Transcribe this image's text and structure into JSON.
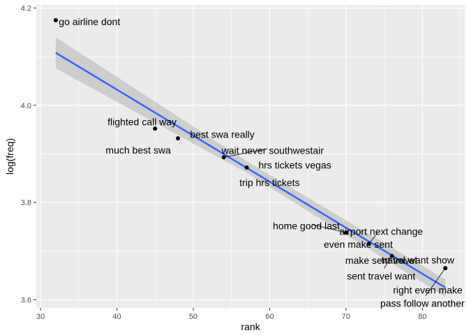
{
  "chart_data": {
    "type": "scatter",
    "title": "",
    "xlabel": "rank",
    "ylabel": "log(freq)",
    "xlim": [
      29.45,
      85.55
    ],
    "ylim": [
      3.5835,
      4.2065
    ],
    "x_ticks": [
      {
        "value": 30,
        "label": "30"
      },
      {
        "value": 40,
        "label": "40"
      },
      {
        "value": 50,
        "label": "50"
      },
      {
        "value": 60,
        "label": "60"
      },
      {
        "value": 70,
        "label": "70"
      },
      {
        "value": 80,
        "label": "80"
      }
    ],
    "y_ticks": [
      {
        "value": 3.6,
        "label": "3.6"
      },
      {
        "value": 3.8,
        "label": "3.8"
      },
      {
        "value": 4.0,
        "label": "4.0"
      },
      {
        "value": 4.2,
        "label": "4.2"
      }
    ],
    "grid": true,
    "legend": "none",
    "points": [
      {
        "x": 32,
        "y": 4.175
      },
      {
        "x": 45,
        "y": 3.952
      },
      {
        "x": 48,
        "y": 3.932
      },
      {
        "x": 54,
        "y": 3.893
      },
      {
        "x": 57,
        "y": 3.872
      },
      {
        "x": 70,
        "y": 3.738
      },
      {
        "x": 73,
        "y": 3.715
      },
      {
        "x": 76,
        "y": 3.69
      },
      {
        "x": 83,
        "y": 3.665
      }
    ],
    "labels": [
      {
        "text": "go airline dont",
        "x": 32.4,
        "y": 4.172,
        "anchor": "start"
      },
      {
        "text": "flighted call way",
        "x": 43.3,
        "y": 3.966,
        "anchor": "middle"
      },
      {
        "text": "best swa really",
        "x": 53.8,
        "y": 3.94,
        "anchor": "middle"
      },
      {
        "text": "much best swa",
        "x": 42.8,
        "y": 3.908,
        "anchor": "middle"
      },
      {
        "text": "wait never southwestair",
        "x": 60.4,
        "y": 3.907,
        "anchor": "middle"
      },
      {
        "text": "hrs tickets vegas",
        "x": 63.3,
        "y": 3.877,
        "anchor": "middle"
      },
      {
        "text": "trip hrs tickets",
        "x": 60.0,
        "y": 3.841,
        "anchor": "middle"
      },
      {
        "text": "home good last",
        "x": 64.8,
        "y": 3.752,
        "anchor": "middle"
      },
      {
        "text": "airport next change",
        "x": 74.6,
        "y": 3.741,
        "anchor": "middle"
      },
      {
        "text": "even make sent",
        "x": 71.6,
        "y": 3.714,
        "anchor": "middle"
      },
      {
        "text": "make sent travel",
        "x": 74.6,
        "y": 3.681,
        "anchor": "middle"
      },
      {
        "text": "travel want show",
        "x": 79.4,
        "y": 3.682,
        "anchor": "middle"
      },
      {
        "text": "sent travel want",
        "x": 74.6,
        "y": 3.649,
        "anchor": "middle"
      },
      {
        "text": "right even make",
        "x": 80.7,
        "y": 3.62,
        "anchor": "middle"
      },
      {
        "text": "pass follow another",
        "x": 80.0,
        "y": 3.593,
        "anchor": "middle"
      }
    ],
    "fit_line": {
      "method": "lm",
      "start": {
        "x": 32,
        "y": 4.108
      },
      "end": {
        "x": 83,
        "y": 3.625
      },
      "ci_upper": [
        {
          "x": 32,
          "y": 4.14
        },
        {
          "x": 57,
          "y": 3.885
        },
        {
          "x": 83,
          "y": 3.642
        }
      ],
      "ci_lower": [
        {
          "x": 32,
          "y": 4.076
        },
        {
          "x": 57,
          "y": 3.861
        },
        {
          "x": 83,
          "y": 3.606
        }
      ],
      "color": "#3366FF"
    },
    "colors": {
      "panel": "#ebebeb",
      "grid": "#ffffff",
      "point": "#000000",
      "ribbon": "#c8c8c8",
      "segment": "#000000"
    }
  }
}
